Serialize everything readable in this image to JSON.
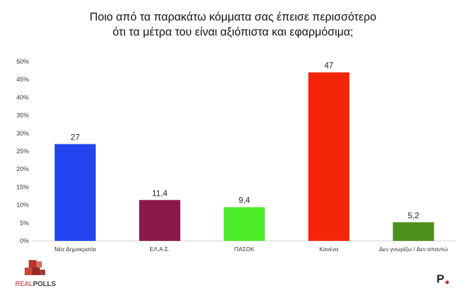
{
  "chart_data": {
    "type": "bar",
    "title_lines": [
      "Ποιο από τα παρακάτω κόμματα σας έπεισε περισσότερο",
      "ότι τα μέτρα του είναι αξιόπιστα και εφαρμόσιμα;"
    ],
    "categories": [
      "Νέα Δημοκρατία",
      "ΕΛ.Α.Σ.",
      "ΠΑΣΟΚ",
      "Κανένα",
      "Δεν γνωρίζω / Δεν απαντώ"
    ],
    "values": [
      27,
      11.4,
      9.4,
      47,
      5.2
    ],
    "value_labels": [
      "27",
      "11,4",
      "9,4",
      "47",
      "5,2"
    ],
    "colors": [
      "#2345f0",
      "#8b1a4a",
      "#4cec2a",
      "#f3260a",
      "#4f8f1e"
    ],
    "ylim": [
      0,
      50
    ],
    "yticks": [
      "0%",
      "5%",
      "10%",
      "15%",
      "20%",
      "25%",
      "30%",
      "35%",
      "40%",
      "45%",
      "50%"
    ],
    "grid": false,
    "xlabel": "",
    "ylabel": ""
  },
  "logos": {
    "left_part1": "REAL",
    "left_part2": "POLLS",
    "right": "P"
  }
}
